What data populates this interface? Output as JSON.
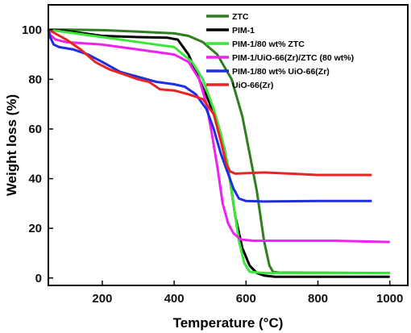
{
  "chart_data": {
    "type": "line",
    "title": "",
    "xlabel": "Temperature (°C)",
    "ylabel": "Weight loss (%)",
    "xlim": [
      50,
      1050
    ],
    "ylim": [
      -3,
      110
    ],
    "xticks": [
      200,
      400,
      600,
      800,
      1000
    ],
    "yticks": [
      0,
      20,
      40,
      60,
      80,
      100
    ],
    "grid": false,
    "legend_position": "top-right",
    "series": [
      {
        "name": "ZTC",
        "color": "#2e7d1e",
        "points": [
          [
            50,
            100
          ],
          [
            100,
            100
          ],
          [
            200,
            99.8
          ],
          [
            300,
            99.2
          ],
          [
            400,
            98.5
          ],
          [
            440,
            97.5
          ],
          [
            480,
            95
          ],
          [
            520,
            90
          ],
          [
            560,
            80
          ],
          [
            590,
            65
          ],
          [
            610,
            50
          ],
          [
            630,
            35
          ],
          [
            650,
            15
          ],
          [
            665,
            5
          ],
          [
            675,
            2.5
          ],
          [
            690,
            2.2
          ],
          [
            800,
            2.1
          ],
          [
            1000,
            2
          ]
        ]
      },
      {
        "name": "PIM-1",
        "color": "#000000",
        "points": [
          [
            50,
            100
          ],
          [
            100,
            99.5
          ],
          [
            150,
            98.5
          ],
          [
            200,
            97.5
          ],
          [
            300,
            97
          ],
          [
            380,
            96.8
          ],
          [
            410,
            96
          ],
          [
            440,
            90
          ],
          [
            470,
            80
          ],
          [
            500,
            70
          ],
          [
            520,
            62
          ],
          [
            540,
            52
          ],
          [
            555,
            40
          ],
          [
            570,
            25
          ],
          [
            590,
            12
          ],
          [
            610,
            5
          ],
          [
            630,
            2
          ],
          [
            650,
            1
          ],
          [
            680,
            0.5
          ],
          [
            800,
            0.5
          ],
          [
            1000,
            0.5
          ]
        ]
      },
      {
        "name": "PIM-1/80 wt% ZTC",
        "color": "#39e639",
        "points": [
          [
            50,
            100
          ],
          [
            100,
            99
          ],
          [
            200,
            97
          ],
          [
            300,
            95
          ],
          [
            400,
            93
          ],
          [
            450,
            87
          ],
          [
            480,
            80
          ],
          [
            510,
            68
          ],
          [
            530,
            58
          ],
          [
            550,
            45
          ],
          [
            565,
            30
          ],
          [
            580,
            15
          ],
          [
            595,
            6
          ],
          [
            610,
            2.5
          ],
          [
            650,
            2
          ],
          [
            800,
            2
          ],
          [
            1000,
            2
          ]
        ]
      },
      {
        "name": "PIM-1/UiO-66(Zr)/ZTC (80 wt%)",
        "color": "#f020f0",
        "points": [
          [
            50,
            100
          ],
          [
            55,
            98
          ],
          [
            70,
            96
          ],
          [
            100,
            95
          ],
          [
            200,
            94
          ],
          [
            300,
            92
          ],
          [
            400,
            90
          ],
          [
            440,
            87
          ],
          [
            470,
            80
          ],
          [
            490,
            70
          ],
          [
            505,
            58
          ],
          [
            520,
            45
          ],
          [
            535,
            30
          ],
          [
            550,
            22
          ],
          [
            565,
            18
          ],
          [
            585,
            15.5
          ],
          [
            620,
            15
          ],
          [
            700,
            15
          ],
          [
            850,
            15
          ],
          [
            1000,
            14.5
          ]
        ]
      },
      {
        "name": "PIM-1/80 wt% UiO-66(Zr)",
        "color": "#1f2ee0",
        "points": [
          [
            50,
            100
          ],
          [
            55,
            97
          ],
          [
            65,
            94
          ],
          [
            80,
            93
          ],
          [
            120,
            92
          ],
          [
            160,
            90
          ],
          [
            200,
            87
          ],
          [
            250,
            83
          ],
          [
            300,
            81
          ],
          [
            350,
            79
          ],
          [
            400,
            78
          ],
          [
            430,
            77
          ],
          [
            460,
            74
          ],
          [
            490,
            68
          ],
          [
            510,
            60
          ],
          [
            530,
            50
          ],
          [
            550,
            42
          ],
          [
            565,
            36
          ],
          [
            580,
            32
          ],
          [
            600,
            31
          ],
          [
            650,
            30.8
          ],
          [
            800,
            31
          ],
          [
            950,
            31
          ]
        ]
      },
      {
        "name": "UiO-66(Zr)",
        "color": "#e82424",
        "points": [
          [
            50,
            100
          ],
          [
            75,
            98
          ],
          [
            100,
            96
          ],
          [
            140,
            92
          ],
          [
            180,
            87
          ],
          [
            220,
            84
          ],
          [
            260,
            82
          ],
          [
            300,
            80
          ],
          [
            330,
            79
          ],
          [
            360,
            76
          ],
          [
            400,
            75.5
          ],
          [
            440,
            74
          ],
          [
            480,
            72
          ],
          [
            510,
            66
          ],
          [
            530,
            55
          ],
          [
            545,
            46
          ],
          [
            555,
            43
          ],
          [
            570,
            42
          ],
          [
            650,
            42.5
          ],
          [
            800,
            41.5
          ],
          [
            950,
            41.5
          ]
        ]
      }
    ]
  }
}
